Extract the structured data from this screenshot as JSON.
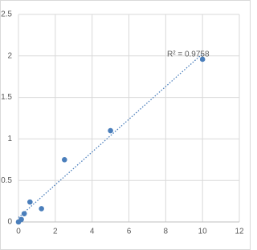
{
  "chart_data": {
    "type": "scatter",
    "annotation": "R² = 0.9758",
    "x": [
      0,
      0.156,
      0.3125,
      0.625,
      1.25,
      2.5,
      5,
      10
    ],
    "series": [
      {
        "color": "#4a7ebb",
        "values": [
          0,
          0.03,
          0.1,
          0.24,
          0.16,
          0.75,
          1.1,
          1.96
        ]
      }
    ],
    "trendline": {
      "color": "#4a7ebb",
      "style": "dotted"
    },
    "xlim": [
      0,
      12
    ],
    "xticks": [
      0,
      2,
      4,
      6,
      8,
      10,
      12
    ],
    "ylim": [
      0,
      2.5
    ],
    "yticks": [
      0,
      0.5,
      1,
      1.5,
      2,
      2.5
    ],
    "grid": true
  }
}
